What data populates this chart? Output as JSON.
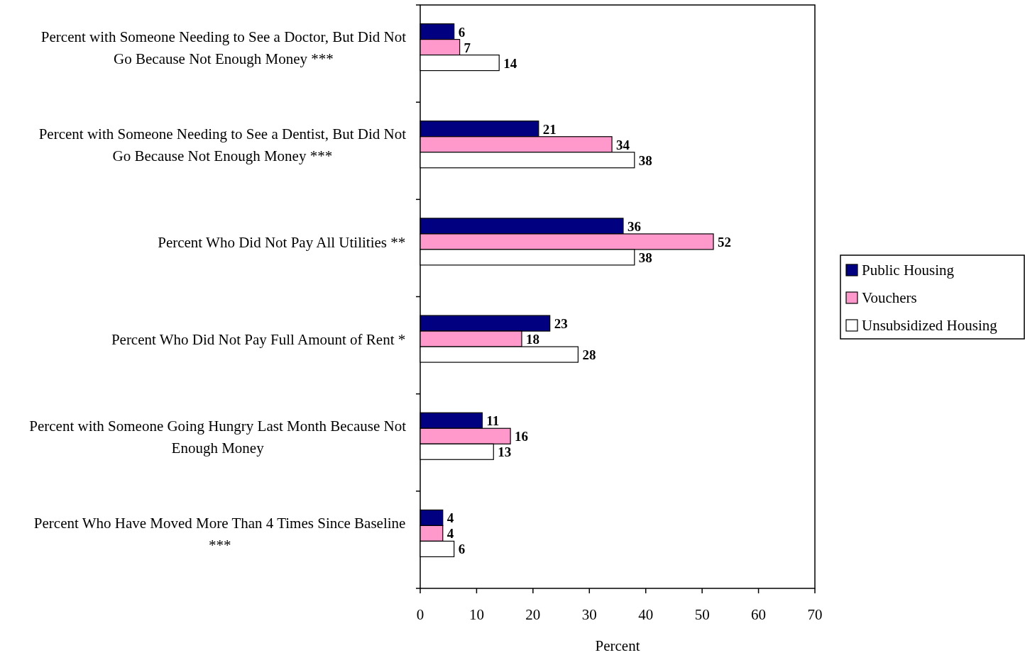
{
  "chart_data": {
    "type": "bar",
    "orientation": "horizontal",
    "xlabel": "Percent",
    "categories": [
      "Percent with Someone Needing to See a Doctor, But Did Not Go Because Not Enough Money ***",
      "Percent with Someone Needing to See a Dentist, But Did Not Go Because Not Enough Money ***",
      "Percent Who Did Not Pay All Utilities **",
      "Percent Who Did Not Pay Full Amount of Rent *",
      "Percent with Someone Going Hungry Last Month Because Not Enough Money",
      "Percent Who Have Moved More Than 4 Times Since Baseline ***"
    ],
    "series": [
      {
        "name": "Public Housing",
        "color": "#000080",
        "values": [
          6,
          21,
          36,
          23,
          11,
          4
        ]
      },
      {
        "name": "Vouchers",
        "color": "#ff99cc",
        "values": [
          7,
          34,
          52,
          18,
          16,
          4
        ]
      },
      {
        "name": "Unsubsidized Housing",
        "color": "#ffffff",
        "values": [
          14,
          38,
          38,
          28,
          13,
          6
        ]
      }
    ],
    "xlim": [
      0,
      70
    ],
    "xticks": [
      0,
      10,
      20,
      30,
      40,
      50,
      60,
      70
    ],
    "data_labels": true,
    "legend": "right",
    "grid": false
  }
}
